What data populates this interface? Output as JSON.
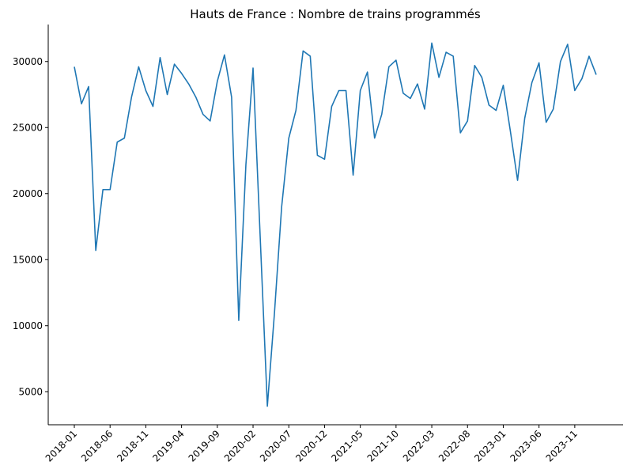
{
  "chart_data": {
    "type": "line",
    "title": "Hauts de France : Nombre de trains programmés",
    "xlabel": "",
    "ylabel": "",
    "grid": false,
    "ylim": [
      2500,
      32800
    ],
    "yticks": [
      5000,
      10000,
      15000,
      20000,
      25000,
      30000
    ],
    "xtick_labels": [
      "2018-01",
      "2018-06",
      "2018-11",
      "2019-04",
      "2019-09",
      "2020-02",
      "2020-07",
      "2020-12",
      "2021-05",
      "2021-10",
      "2022-03",
      "2022-08",
      "2023-01",
      "2023-06",
      "2023-11"
    ],
    "series": [
      {
        "color": "#1f77b4",
        "x": [
          "2018-01",
          "2018-02",
          "2018-03",
          "2018-04",
          "2018-05",
          "2018-06",
          "2018-07",
          "2018-08",
          "2018-09",
          "2018-10",
          "2018-11",
          "2018-12",
          "2019-01",
          "2019-02",
          "2019-03",
          "2019-04",
          "2019-05",
          "2019-06",
          "2019-07",
          "2019-08",
          "2019-09",
          "2019-10",
          "2019-11",
          "2019-12",
          "2020-01",
          "2020-02",
          "2020-03",
          "2020-04",
          "2020-05",
          "2020-06",
          "2020-07",
          "2020-08",
          "2020-09",
          "2020-10",
          "2020-11",
          "2020-12",
          "2021-01",
          "2021-02",
          "2021-03",
          "2021-04",
          "2021-05",
          "2021-06",
          "2021-07",
          "2021-08",
          "2021-09",
          "2021-10",
          "2021-11",
          "2021-12",
          "2022-01",
          "2022-02",
          "2022-03",
          "2022-04",
          "2022-05",
          "2022-06",
          "2022-07",
          "2022-08",
          "2022-09",
          "2022-10",
          "2022-11",
          "2022-12",
          "2023-01",
          "2023-02",
          "2023-03",
          "2023-04",
          "2023-05",
          "2023-06",
          "2023-07",
          "2023-08",
          "2023-09",
          "2023-10",
          "2023-11",
          "2023-12",
          "2024-01",
          "2024-02"
        ],
        "values": [
          29600,
          26800,
          28100,
          15700,
          20300,
          20300,
          23900,
          24200,
          27300,
          29600,
          27800,
          26600,
          30300,
          27500,
          29800,
          29100,
          28300,
          27300,
          26000,
          25500,
          28500,
          30500,
          27300,
          10400,
          22200,
          29500,
          16700,
          3900,
          11000,
          19000,
          24200,
          26300,
          30800,
          30400,
          22900,
          22600,
          26600,
          27800,
          27800,
          21400,
          27800,
          29200,
          24200,
          26000,
          29600,
          30100,
          27600,
          27200,
          28300,
          26400,
          31400,
          28800,
          30700,
          30400,
          24600,
          25500,
          29700,
          28800,
          26700,
          26300,
          28200,
          24700,
          21000,
          25700,
          28400,
          29900,
          25400,
          26400,
          30000,
          31300,
          27800,
          28700,
          30400,
          29000
        ]
      }
    ]
  }
}
